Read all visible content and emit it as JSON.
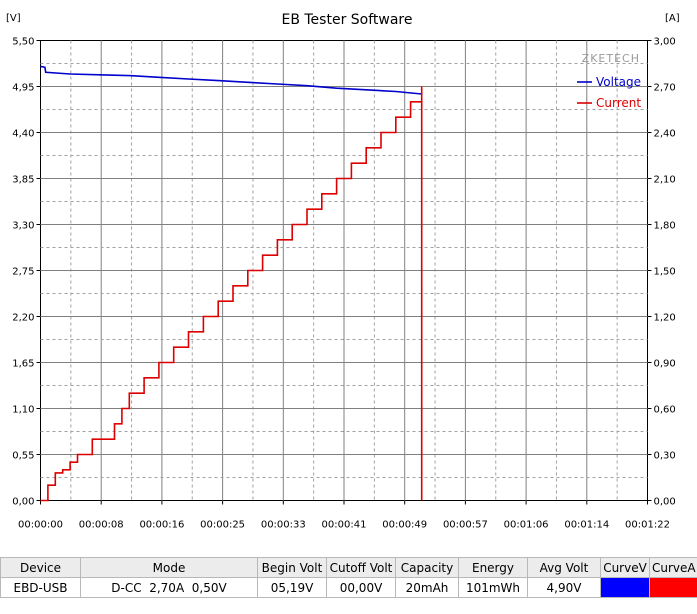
{
  "window": {
    "title": "EB Tester Software"
  },
  "chart_data": {
    "type": "line",
    "title": "EB Tester Software",
    "watermark": "ZKETECH",
    "y_left_unit": "[V]",
    "y_right_unit": "[A]",
    "ylim_left": [
      0,
      5.5
    ],
    "ylim_right": [
      0,
      3.0
    ],
    "xlim": [
      0,
      82
    ],
    "x_ticks": [
      0,
      8,
      16,
      25,
      33,
      41,
      49,
      57,
      66,
      74,
      82
    ],
    "x_tick_labels": [
      "00:00:00",
      "00:00:08",
      "00:00:16",
      "00:00:25",
      "00:00:33",
      "00:00:41",
      "00:00:49",
      "00:00:57",
      "00:01:06",
      "00:01:14",
      "00:01:22"
    ],
    "y_left_ticks": [
      0,
      0.55,
      1.1,
      1.65,
      2.2,
      2.75,
      3.3,
      3.85,
      4.4,
      4.95,
      5.5
    ],
    "y_left_tick_labels": [
      "0,00",
      "0,55",
      "1,10",
      "1,65",
      "2,20",
      "2,75",
      "3,30",
      "3,85",
      "4,40",
      "4,95",
      "5,50"
    ],
    "y_right_ticks": [
      0,
      0.3,
      0.6,
      0.9,
      1.2,
      1.5,
      1.8,
      2.1,
      2.4,
      2.7,
      3.0
    ],
    "y_right_tick_labels": [
      "0,00",
      "0,30",
      "0,60",
      "0,90",
      "1,20",
      "1,50",
      "1,80",
      "2,10",
      "2,40",
      "2,70",
      "3,00"
    ],
    "grid": true,
    "legend_position": "top-right",
    "series": [
      {
        "name": "Voltage",
        "axis": "left",
        "color": "#0000cc",
        "step": false,
        "x": [
          0,
          0.6,
          0.7,
          4,
          8,
          12,
          16,
          20,
          24,
          28,
          32,
          36,
          40,
          44,
          48,
          51.5
        ],
        "y": [
          5.19,
          5.18,
          5.12,
          5.1,
          5.09,
          5.08,
          5.06,
          5.04,
          5.02,
          5.0,
          4.98,
          4.96,
          4.93,
          4.91,
          4.89,
          4.86
        ]
      },
      {
        "name": "Current",
        "axis": "right",
        "color": "#dd0000",
        "step": true,
        "x": [
          0,
          1,
          2,
          3,
          4,
          5,
          7,
          10,
          11,
          12,
          14,
          16,
          18,
          20,
          22,
          24,
          26,
          28,
          30,
          32,
          34,
          36,
          38,
          40,
          42,
          44,
          46,
          48,
          50,
          51.5,
          51.5
        ],
        "y": [
          0,
          0.1,
          0.18,
          0.2,
          0.25,
          0.3,
          0.4,
          0.5,
          0.6,
          0.7,
          0.8,
          0.9,
          1.0,
          1.1,
          1.2,
          1.3,
          1.4,
          1.5,
          1.6,
          1.7,
          1.8,
          1.9,
          2.0,
          2.1,
          2.2,
          2.3,
          2.4,
          2.5,
          2.6,
          2.7,
          0
        ]
      }
    ]
  },
  "table": {
    "headers": [
      "Device",
      "Mode",
      "Begin Volt",
      "Cutoff Volt",
      "Capacity",
      "Energy",
      "Avg Volt",
      "CurveV",
      "CurveA"
    ],
    "row": {
      "device": "EBD-USB",
      "mode": "D-CC  2,70A  0,50V",
      "begin_volt": "05,19V",
      "cutoff_volt": "00,00V",
      "capacity": "20mAh",
      "energy": "101mWh",
      "avg_volt": "4,90V"
    },
    "curve_v_color": "#0000ff",
    "curve_a_color": "#ff0000"
  }
}
